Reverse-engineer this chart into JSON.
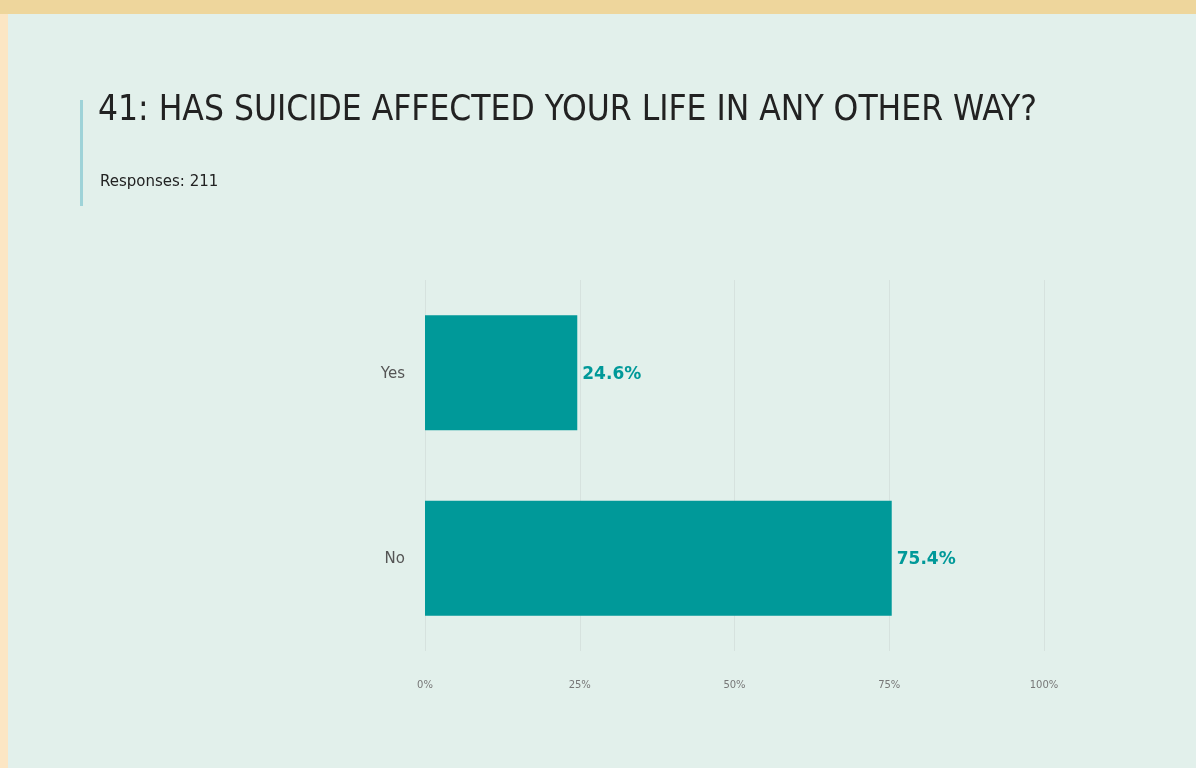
{
  "chart_data": {
    "type": "bar",
    "orientation": "horizontal",
    "title": "41: HAS SUICIDE AFFECTED YOUR LIFE IN ANY OTHER WAY?",
    "subtitle": "Responses: 211",
    "categories": [
      "Yes",
      "No"
    ],
    "values": [
      24.6,
      75.4
    ],
    "color": "#009999",
    "value_labels": [
      "24.6%",
      "75.4%"
    ],
    "xlim": [
      0,
      100
    ],
    "xticks": [
      {
        "value": 0,
        "label": "0%"
      },
      {
        "value": 25,
        "label": "25%"
      },
      {
        "value": 50,
        "label": "50%"
      },
      {
        "value": 75,
        "label": "75%"
      },
      {
        "value": 100,
        "label": "100%"
      }
    ],
    "grid": "x"
  }
}
